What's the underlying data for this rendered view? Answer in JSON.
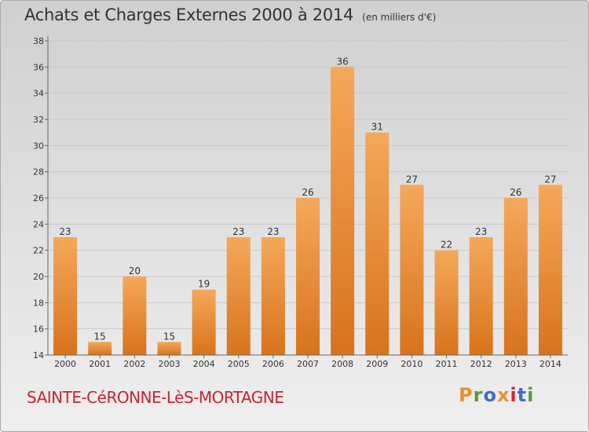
{
  "header": {
    "title": "Achats et Charges Externes 2000 à 2014",
    "unit": "(en milliers d'€)"
  },
  "footer": {
    "town": "SAINTE-CéRONNE-LèS-MORTAGNE",
    "logo_text": "Proxiti"
  },
  "colors": {
    "bar_light": "#f5a85a",
    "bar_dark": "#d8731c",
    "grid": "#c8c8c8",
    "logo_letters": [
      "#e8912b",
      "#5a9a3c",
      "#3d6fc4",
      "#e8912b",
      "#d9262f",
      "#3d6fc4",
      "#5a9a3c"
    ]
  },
  "chart_data": {
    "type": "bar",
    "title": "Achats et Charges Externes 2000 à 2014",
    "subtitle": "(en milliers d'€)",
    "xlabel": "",
    "ylabel": "",
    "categories": [
      "2000",
      "2001",
      "2002",
      "2003",
      "2004",
      "2005",
      "2006",
      "2007",
      "2008",
      "2009",
      "2010",
      "2011",
      "2012",
      "2013",
      "2014"
    ],
    "values": [
      23,
      15,
      20,
      15,
      19,
      23,
      23,
      26,
      36,
      31,
      27,
      22,
      23,
      26,
      27
    ],
    "ylim": [
      14,
      38
    ],
    "yticks": [
      14,
      16,
      18,
      20,
      22,
      24,
      26,
      28,
      30,
      32,
      34,
      36,
      38
    ],
    "grid": true,
    "legend": "none"
  }
}
